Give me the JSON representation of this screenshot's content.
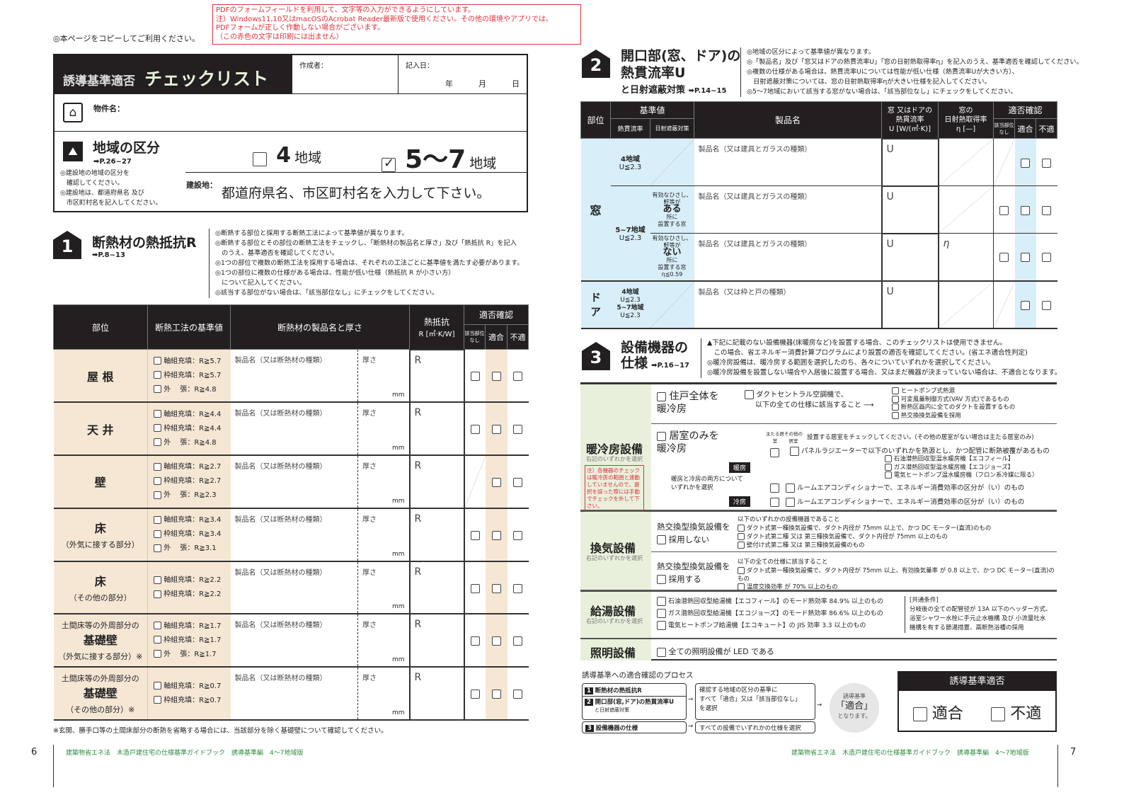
{
  "top_note": "◎本ページをコピーしてご利用ください。",
  "red_notice": [
    "PDFのフォームフィールドを利用して、文字等の入力ができるようにしています。",
    "注）Windows11,10又はmacOSのAcrobat Reader最新版で使用ください。その他の環境やアプリでは、",
    "PDFフォームが正しく作動しない場合がございます。",
    "（この赤色の文字は印刷には出ません）"
  ],
  "header": {
    "title_a": "誘導基準適否",
    "title_b": "チェックリスト",
    "author_label": "作成者：",
    "date_label": "記入日：",
    "year": "年",
    "month": "月",
    "day": "日",
    "property_label": "物件名："
  },
  "region": {
    "title": "地域の区分",
    "ref": "➡P.26~27",
    "notes": [
      "◎建設地の地域の区分を",
      "　確認してください。",
      "◎建設地は、都道府県名 及び",
      "　市区町村名を記入してください。"
    ],
    "opt4_num": "4",
    "opt4_label": "地域",
    "opt4_checked": false,
    "opt57_num": "5〜7",
    "opt57_label": "地域",
    "opt57_checked": true,
    "site_label": "建設地：",
    "site_value": "都道府県名、市区町村名を入力して下さい。"
  },
  "sec1": {
    "num": "1",
    "title": "断熱材の熱抵抗R",
    "ref": "➡P.8~13",
    "notes": [
      "◎断熱する部位と採用する断熱工法によって基準値が異なります。",
      "◎断熱する部位とその部位の断熱工法をチェックし、「断熱材の製品名と厚さ」及び「熱抵抗 R」を記入",
      "　のうえ、基準適否を確認してください。",
      "◎1つの部位で複数の断熱工法を採用する場合は、それぞれの工法ごとに基準値を満たす必要があります。",
      "◎1つの部位に複数の仕様がある場合は、性能が低い仕様（熱抵抗 R が小さい方）",
      "　について記入してください。",
      "◎該当する部位がない場合は、「該当部位なし」にチェックをしてください。"
    ],
    "cols": {
      "part": "部位",
      "method": "断熱工法の基準値",
      "product": "断熱材の製品名と厚さ",
      "r": "熱抵抗",
      "r_unit": "R [㎡·K/W]",
      "check": "適否確認",
      "na": "該当部位なし",
      "ok": "適合",
      "ng": "不適"
    },
    "product_ph": "製品名（又は断熱材の種類）",
    "thick_label": "厚さ",
    "mm": "mm",
    "r_ph": "R",
    "rows": [
      {
        "part_pre": "",
        "part": "屋 根",
        "part_sub": "",
        "methods": [
          "軸組充填：R≧5.7",
          "枠組充填：R≧5.7",
          "外　 張：R≧4.8"
        ],
        "na": true
      },
      {
        "part_pre": "",
        "part": "天 井",
        "part_sub": "",
        "methods": [
          "軸組充填：R≧4.4",
          "枠組充填：R≧4.4",
          "外　 張：R≧4.8"
        ],
        "na": true
      },
      {
        "part_pre": "",
        "part": "壁",
        "part_sub": "",
        "methods": [
          "軸組充填：R≧2.7",
          "枠組充填：R≧2.7",
          "外　 張：R≧2.3"
        ],
        "na": false
      },
      {
        "part_pre": "",
        "part": "床",
        "part_sub": "（外気に接する部分）",
        "methods": [
          "軸組充填：R≧3.4",
          "枠組充填：R≧3.4",
          "外　 張：R≧3.1"
        ],
        "na": true
      },
      {
        "part_pre": "",
        "part": "床",
        "part_sub": "（その他の部分）",
        "methods": [
          "軸組充填：R≧2.2",
          "枠組充填：R≧2.2"
        ],
        "na": true
      },
      {
        "part_pre": "土間床等の外周部分の",
        "part": "基礎壁",
        "part_sub": "（外気に接する部分）※",
        "methods": [
          "軸組充填：R≧1.7",
          "枠組充填：R≧1.7",
          "外　 張：R≧1.7"
        ],
        "na": true
      },
      {
        "part_pre": "土間床等の外周部分の",
        "part": "基礎壁",
        "part_sub": "（その他の部分）※",
        "methods": [
          "軸組充填：R≧0.7",
          "枠組充填：R≧0.7"
        ],
        "na": true
      }
    ],
    "footnote": "※玄関、勝手口等の土間床部分の断熱を省略する場合には、当該部分を除く基礎壁について確認してください。"
  },
  "sec2": {
    "num": "2",
    "title1": "開口部(窓、ドア)の",
    "title2": "熱貫流率U",
    "title3": "と日射遮蔽対策",
    "ref": "➡P.14~15",
    "notes": [
      "◎地域の区分によって基準値が異なります。",
      "◎「製品名」及び「窓又はドアの熱貫流率U」「窓の日射熱取得率η」を記入のうえ、基準適否を確認してください。",
      "◎複数の仕様がある場合は、熱貫流率Uについては性能が低い仕様（熱貫流率Uが大きい方）、",
      "　日射遮蔽対策については、窓の日射熱取得率ηが大きい仕様を記入してください。",
      "◎5〜7地域において該当する窓がない場合は、「該当部位なし」にチェックをしてください。"
    ],
    "cols": {
      "part": "部位",
      "std": "基準値",
      "std_u": "熱貫流率",
      "std_shade": "日射遮蔽対策",
      "product": "製品名",
      "u1": "窓 又はドアの",
      "u2": "熱貫流率",
      "u3": "U [W/(㎡·K)]",
      "eta1": "窓の",
      "eta2": "日射熱取得率",
      "eta3": "η [—]",
      "check": "適否確認",
      "na": "該当部位なし",
      "ok": "適合",
      "ng": "不適"
    },
    "window": "窓",
    "door": "ド ア",
    "w4_region": "4地域",
    "w4_u": "U≦2.3",
    "w57_region": "5~7地域",
    "w57_u": "U≦2.3",
    "shade_yes": [
      "有効なひさし、",
      "軒等が",
      "ある",
      "所に",
      "設置する窓"
    ],
    "shade_no": [
      "有効なひさし、",
      "軒等が",
      "ない",
      "所に",
      "設置する窓",
      "η≦0.59"
    ],
    "window_ph": "製品名（又は建具とガラスの種類）",
    "door_ph": "製品名（又は枠と戸の種類）",
    "u_ph": "U",
    "eta_ph": "η",
    "d4_region": "4地域",
    "d4_u": "U≦2.3",
    "d57_region": "5~7地域",
    "d57_u": "U≦2.3"
  },
  "sec3": {
    "num": "3",
    "title1": "設備機器の",
    "title2": "仕様",
    "ref": "➡P.16~17",
    "notes": [
      "▲下記に記載のない設備機器(床暖房など)を設置する場合、このチェックリストは使用できません。",
      "　この場合、省エネルギー消費計算プログラムにより設置の適否を確認してください。(省エネ適合性判定)",
      "◎暖冷房設備は、暖冷房する範囲を選択したのち、各々についていずれかを選択してください。",
      "◎暖冷房設備を設置しない場合や入居後に設置する場合、又はまだ機器が決まっていない場合は、不適合となります。"
    ],
    "hvac": {
      "label": "暖冷房設備",
      "sub": "右記のいずれかを選択",
      "warn": "注）各機器のチェックは暖冷房の範囲と連動していませんので、選択を誤った際には手動でチェックを外して下さい。",
      "whole": "住戸全体を暖冷房",
      "duct": "ダクトセントラル空調機で、",
      "duct2": "以下の全ての仕様に該当すること",
      "duct_items": [
        "ヒートポンプ式熱源",
        "可変風量制御方式(VAV 方式)であるもの",
        "断熱区画内に全てのダクトを設置するもの",
        "熱交換換気設備を採用"
      ],
      "room": "居室のみを暖冷房",
      "main_room": "主たる居室",
      "other_room": "その他の居室",
      "room_note": "設置する居室をチェックしてください。(その他の居室がない場合は主たる居室のみ)",
      "heat": "暖房",
      "cool": "冷房",
      "both_note": "暖房と冷房の両方についていずれかを選択",
      "panel": "パネルラジエーターで以下のいずれかを熱源とし、かつ配管に断熱被覆があるもの",
      "panel_items": [
        "石油潜熱回収型温水暖房機【エコフィール】",
        "ガス潜熱回収型温水暖房機【エコジョーズ】",
        "電気ヒートポンプ温水暖房機（フロン系冷媒に限る）"
      ],
      "ac_heat": "ルームエアコンディショナーで、エネルギー消費効率の区分が（い）のもの",
      "ac_cool": "ルームエアコンディショナーで、エネルギー消費効率の区分が（い）のもの"
    },
    "vent": {
      "label": "換気設備",
      "sub": "右記のいずれかを選択",
      "no_a": "熱交換型換気設備を",
      "no_b": "採用しない",
      "no_lead": "以下のいずれかの設備機器であること",
      "no_items": [
        "ダクト式第一種換気設備で、ダクト内径が 75mm 以上で、かつ DC モーター(直流)のもの",
        "ダクト式第二種 又は 第三種換気設備で、ダクト内径が 75mm 以上のもの",
        "壁付け式第二種 又は 第三種換気設備のもの"
      ],
      "yes_a": "熱交換型換気設備を",
      "yes_b": "採用する",
      "yes_lead": "以下の全ての仕様に該当すること",
      "yes_items": [
        "ダクト式第一種換気設備で、ダクト内径が 75mm 以上、有効換気量率 が 0.8 以上で、かつ DC モーター(直流)のもの",
        "温度交換効率 が 70% 以上のもの"
      ]
    },
    "water": {
      "label": "給湯設備",
      "sub": "右記のいずれかを選択",
      "items": [
        "石油潜熱回収型給湯機【エコフィール】のモード熱効率 84.9% 以上のもの",
        "ガス潜熱回収型給湯機【エコジョーズ】のモード熱効率 86.6% 以上のもの",
        "電気ヒートポンプ給湯機【エコキュート】の JIS 効率 3.3 以上のもの"
      ],
      "common_title": "[共通条件]",
      "common": [
        "分岐後の全ての配管径が 13A 以下のヘッダー方式、",
        "浴室シャワー水栓に手元止水機構 及び 小流量吐水",
        "機構を有する節湯措置、高断熱浴槽の採用"
      ]
    },
    "light": {
      "label": "照明設備",
      "item": "全ての照明設備が LED である"
    }
  },
  "process": {
    "title": "誘導基準への適合確認のプロセス",
    "s1": "断熱材の熱抵抗R",
    "s2": "開口部(窓,ドア)の熱貫流率U",
    "s2b": "と日射遮蔽対策",
    "s3": "設備機器の仕様",
    "c1": [
      "確認する地域の区分の基準に",
      "すべて「適合」又は「該当部位なし」",
      "を選択"
    ],
    "c2": "すべての設備でいずれかの仕様を選択",
    "r1": "誘導基準",
    "r2": "「適合」",
    "r3": "となります。"
  },
  "judge": {
    "title": "誘導基準適否",
    "ok": "適合",
    "ng": "不適"
  },
  "footer": {
    "left_page": "6",
    "right_page": "7",
    "text": "建築物省エネ法　木造戸建住宅の仕様基準ガイドブック　誘導基準編　4～7地域版"
  },
  "colors": {
    "dark": "#231f20",
    "beige": "#f6e7d5",
    "blue": "#d8eef9",
    "green": "#e8f0dc",
    "red": "#e0303a",
    "footer_green": "#2e8b3e"
  }
}
